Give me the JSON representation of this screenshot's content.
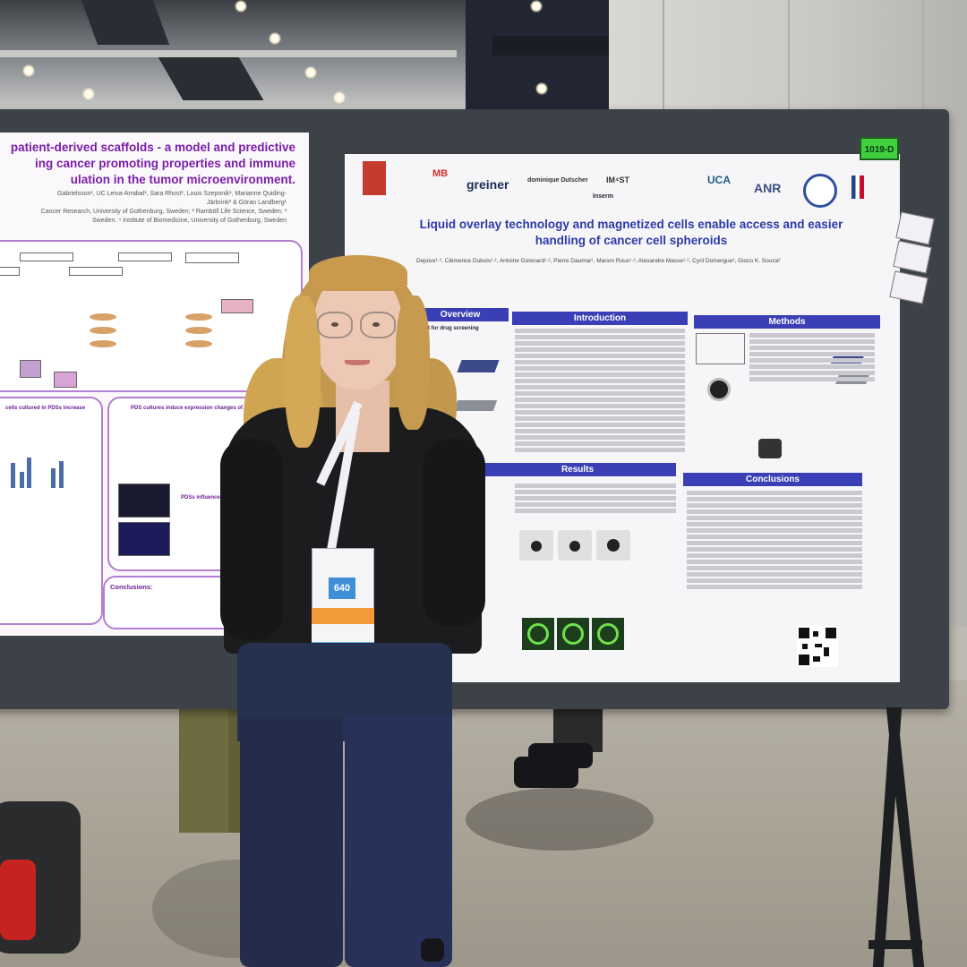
{
  "scene": {
    "description_label": "Researcher standing in front of a scientific poster at a conference",
    "poster_number": "1019-D",
    "badge_number": "640"
  },
  "left_poster": {
    "title_lines": [
      "patient-derived scaffolds - a model and predictive",
      "ing cancer promoting properties and immune",
      "ulation in the tumor microenvironment."
    ],
    "authors_lines": [
      "Gabrielsson¹, UC Leiva-Arrabal¹, Sara Rhost¹, Louis Szeponik¹, Marianne Quiding-",
      "Järbrink² & Göran Landberg¹",
      "Cancer Research, University of Gothenburg, Sweden; ² Ramböll Life Science, Sweden; ³",
      "Sweden. ⁴ Institute of Biomedicine, University of Gothenburg, Sweden"
    ],
    "section_labels": [
      "cells cultured in PDSs increase",
      "PDS cultures induce expression changes of immune",
      "PDSs influence T",
      "Conclusions:"
    ]
  },
  "right_poster": {
    "title_line1": "Liquid overlay technology and magnetized cells enable access and easier",
    "title_line2": "handling of cancer cell spheroids",
    "logos": [
      "MB",
      "greiner",
      "dominique Dutscher",
      "IM⁴ST",
      "Inserm",
      "UCA",
      "ANR"
    ],
    "authors_line": "Dejoiux¹·², Clémence Dubois¹·², Antoine Goisnard¹·², Pierre Daumar¹, Manon Roux¹·², Alexandre Masse¹·², Cyril Domergue³, Gioco K. Souza²",
    "sections": {
      "overview": "Overview",
      "introduction": "Introduction",
      "methods": "Methods",
      "results": "Results",
      "conclusions": "Conclusions"
    },
    "overview_caption": "kit for drug screening"
  }
}
